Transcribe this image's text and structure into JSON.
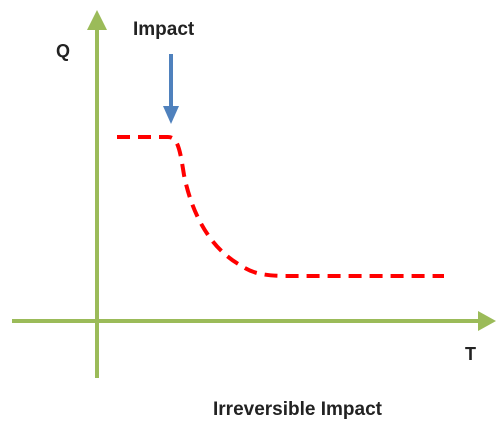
{
  "labels": {
    "y_axis": "Q",
    "x_axis": "T",
    "impact": "Impact",
    "caption": "Irreversible Impact"
  },
  "colors": {
    "axis": "#9bbb59",
    "curve": "#ff0000",
    "arrow": "#4f81bd",
    "text": "#222222"
  }
}
